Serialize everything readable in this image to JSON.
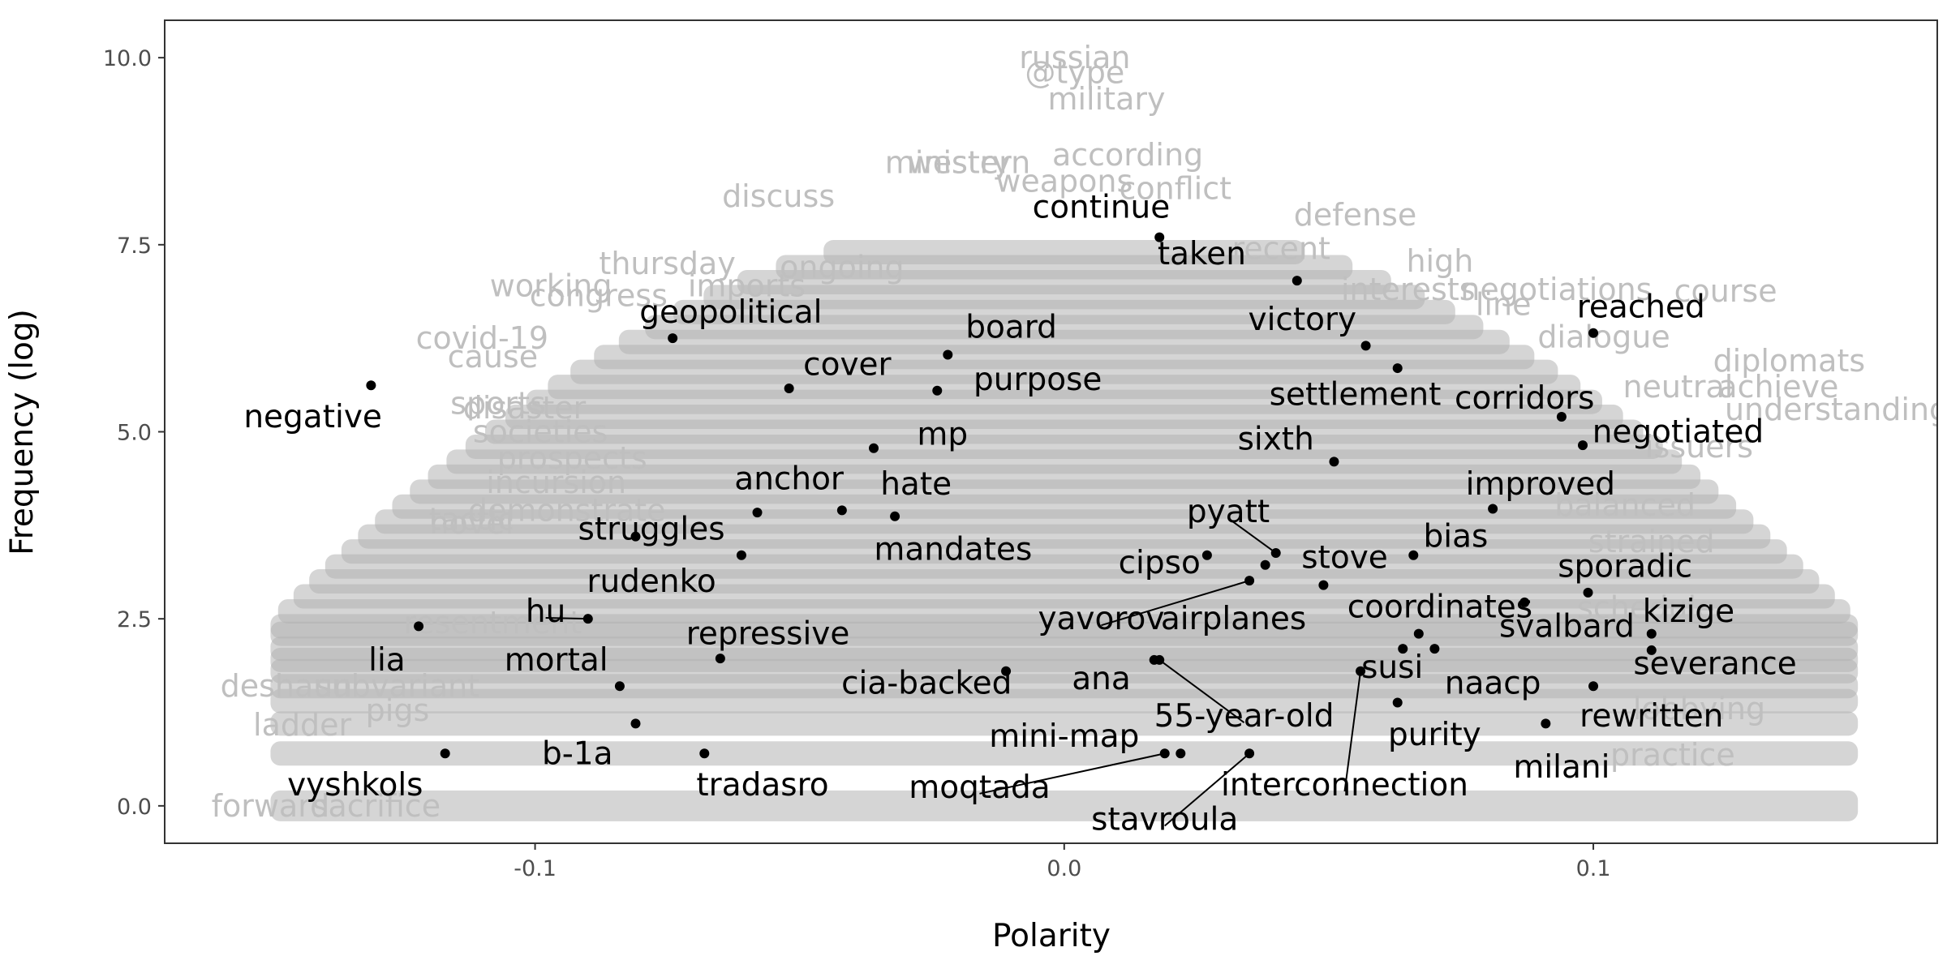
{
  "chart_data": {
    "type": "scatter",
    "xlabel": "Polarity",
    "ylabel": "Frequency (log)",
    "xlim": [
      -0.17,
      0.165
    ],
    "ylim": [
      -0.5,
      10.5
    ],
    "x_ticks": [
      -0.1,
      0.0,
      0.1
    ],
    "x_tick_labels": [
      "-0.1",
      "0.0",
      "0.1"
    ],
    "y_ticks": [
      0.0,
      2.5,
      5.0,
      7.5,
      10.0
    ],
    "y_tick_labels": [
      "0.0",
      "2.5",
      "5.0",
      "7.5",
      "10.0"
    ],
    "grid": false,
    "colors": {
      "highlight": "#000000",
      "background_words": "#bfbfbf",
      "background_cloud": "#b3b3b3"
    },
    "highlighted": [
      {
        "word": "negative",
        "x": -0.131,
        "y": 5.62,
        "lx": -0.142,
        "ly": 5.2
      },
      {
        "word": "lia",
        "x": -0.122,
        "y": 2.4,
        "lx": -0.128,
        "ly": 1.95
      },
      {
        "word": "vyshkols",
        "x": -0.117,
        "y": 0.7,
        "lx": -0.134,
        "ly": 0.28
      },
      {
        "word": "hu",
        "x": -0.09,
        "y": 2.5,
        "lx": -0.098,
        "ly": 2.6,
        "leader": true
      },
      {
        "word": "mortal",
        "x": -0.084,
        "y": 1.6,
        "lx": -0.096,
        "ly": 1.95
      },
      {
        "word": "b-1a",
        "x": -0.081,
        "y": 1.1,
        "lx": -0.092,
        "ly": 0.7
      },
      {
        "word": "rudenko",
        "x": -0.081,
        "y": 3.6,
        "lx": -0.078,
        "ly": 3.0
      },
      {
        "word": "struggles",
        "x": -0.061,
        "y": 3.35,
        "lx": -0.078,
        "ly": 3.7
      },
      {
        "word": "anchor",
        "x": -0.058,
        "y": 3.92,
        "lx": -0.052,
        "ly": 4.37
      },
      {
        "word": "repressive",
        "x": -0.065,
        "y": 1.97,
        "lx": -0.056,
        "ly": 2.3
      },
      {
        "word": "tradasro",
        "x": -0.068,
        "y": 0.7,
        "lx": -0.057,
        "ly": 0.28
      },
      {
        "word": "geopolitical",
        "x": -0.074,
        "y": 6.25,
        "lx": -0.063,
        "ly": 6.6
      },
      {
        "word": "cover",
        "x": -0.052,
        "y": 5.58,
        "lx": -0.041,
        "ly": 5.9
      },
      {
        "word": "hate",
        "x": -0.042,
        "y": 3.95,
        "lx": -0.028,
        "ly": 4.3
      },
      {
        "word": "mandates",
        "x": -0.032,
        "y": 3.87,
        "lx": -0.021,
        "ly": 3.43
      },
      {
        "word": "mp",
        "x": -0.036,
        "y": 4.78,
        "lx": -0.023,
        "ly": 4.97
      },
      {
        "word": "board",
        "x": -0.022,
        "y": 6.03,
        "lx": -0.01,
        "ly": 6.4
      },
      {
        "word": "purpose",
        "x": -0.024,
        "y": 5.55,
        "lx": -0.005,
        "ly": 5.7
      },
      {
        "word": "cia-backed",
        "x": -0.011,
        "y": 1.8,
        "lx": -0.026,
        "ly": 1.64
      },
      {
        "word": "continue",
        "x": 0.018,
        "y": 7.6,
        "lx": 0.007,
        "ly": 8.0
      },
      {
        "word": "taken",
        "x": 0.044,
        "y": 7.02,
        "lx": 0.026,
        "ly": 7.38
      },
      {
        "word": "victory",
        "x": 0.057,
        "y": 6.15,
        "lx": 0.045,
        "ly": 6.5
      },
      {
        "word": "settlement",
        "x": 0.063,
        "y": 5.85,
        "lx": 0.055,
        "ly": 5.5
      },
      {
        "word": "sixth",
        "x": 0.051,
        "y": 4.6,
        "lx": 0.04,
        "ly": 4.9
      },
      {
        "word": "pyatt",
        "x": 0.04,
        "y": 3.38,
        "lx": 0.031,
        "ly": 3.93,
        "leader": true
      },
      {
        "word": "cipso",
        "x": 0.027,
        "y": 3.35,
        "lx": 0.018,
        "ly": 3.25
      },
      {
        "word": "stove",
        "x": 0.038,
        "y": 3.22,
        "lx": 0.053,
        "ly": 3.32
      },
      {
        "word": "yavorov",
        "x": 0.035,
        "y": 3.01,
        "lx": 0.007,
        "ly": 2.5,
        "leader": true
      },
      {
        "word": "airplanes",
        "x": 0.049,
        "y": 2.95,
        "lx": 0.032,
        "ly": 2.5
      },
      {
        "word": "bias",
        "x": 0.066,
        "y": 3.35,
        "lx": 0.074,
        "ly": 3.6
      },
      {
        "word": "coordinates",
        "x": 0.067,
        "y": 2.3,
        "lx": 0.071,
        "ly": 2.66
      },
      {
        "word": "ana",
        "x": 0.017,
        "y": 1.95,
        "lx": 0.007,
        "ly": 1.7
      },
      {
        "word": "55-year-old",
        "x": 0.018,
        "y": 1.95,
        "lx": 0.034,
        "ly": 1.2,
        "leader": true
      },
      {
        "word": "mini-map",
        "x": 0.022,
        "y": 0.7,
        "lx": 0.0,
        "ly": 0.93
      },
      {
        "word": "moqtada",
        "x": 0.019,
        "y": 0.7,
        "lx": -0.016,
        "ly": 0.25,
        "leader": true
      },
      {
        "word": "stavroula",
        "x": 0.035,
        "y": 0.7,
        "lx": 0.019,
        "ly": -0.18,
        "leader": true
      },
      {
        "word": "interconnection",
        "x": 0.056,
        "y": 1.8,
        "lx": 0.053,
        "ly": 0.28,
        "leader": true
      },
      {
        "word": "susi",
        "x": 0.064,
        "y": 2.1,
        "lx": 0.062,
        "ly": 1.85
      },
      {
        "word": "purity",
        "x": 0.063,
        "y": 1.38,
        "lx": 0.07,
        "ly": 0.95
      },
      {
        "word": "naacp",
        "x": 0.07,
        "y": 2.1,
        "lx": 0.081,
        "ly": 1.64
      },
      {
        "word": "milani",
        "x": 0.091,
        "y": 1.1,
        "lx": 0.094,
        "ly": 0.52
      },
      {
        "word": "svalbard",
        "x": 0.087,
        "y": 2.72,
        "lx": 0.095,
        "ly": 2.4
      },
      {
        "word": "rewritten",
        "x": 0.1,
        "y": 1.6,
        "lx": 0.111,
        "ly": 1.2
      },
      {
        "word": "severance",
        "x": 0.111,
        "y": 2.08,
        "lx": 0.123,
        "ly": 1.9
      },
      {
        "word": "kizige",
        "x": 0.111,
        "y": 2.3,
        "lx": 0.118,
        "ly": 2.6
      },
      {
        "word": "sporadic",
        "x": 0.099,
        "y": 2.85,
        "lx": 0.106,
        "ly": 3.2
      },
      {
        "word": "improved",
        "x": 0.081,
        "y": 3.97,
        "lx": 0.09,
        "ly": 4.3
      },
      {
        "word": "corridors",
        "x": 0.094,
        "y": 5.2,
        "lx": 0.087,
        "ly": 5.45
      },
      {
        "word": "negotiated",
        "x": 0.098,
        "y": 4.82,
        "lx": 0.116,
        "ly": 5.0
      },
      {
        "word": "reached",
        "x": 0.1,
        "y": 6.32,
        "lx": 0.109,
        "ly": 6.67
      }
    ],
    "background_words": [
      {
        "word": "russian",
        "x": 0.002,
        "y": 10.0
      },
      {
        "word": "@type",
        "x": 0.002,
        "y": 9.8
      },
      {
        "word": "military",
        "x": 0.008,
        "y": 9.45
      },
      {
        "word": "western",
        "x": -0.018,
        "y": 8.6
      },
      {
        "word": "ministry",
        "x": -0.022,
        "y": 8.6
      },
      {
        "word": "weapons",
        "x": 0.0,
        "y": 8.35
      },
      {
        "word": "according",
        "x": 0.012,
        "y": 8.7
      },
      {
        "word": "conflict",
        "x": 0.021,
        "y": 8.25
      },
      {
        "word": "discuss",
        "x": -0.054,
        "y": 8.15
      },
      {
        "word": "defense",
        "x": 0.055,
        "y": 7.9
      },
      {
        "word": "thursday",
        "x": -0.075,
        "y": 7.25
      },
      {
        "word": "ongoing",
        "x": -0.042,
        "y": 7.2
      },
      {
        "word": "recent",
        "x": 0.041,
        "y": 7.45
      },
      {
        "word": "high",
        "x": 0.071,
        "y": 7.28
      },
      {
        "word": "negotiations",
        "x": 0.093,
        "y": 6.9
      },
      {
        "word": "course",
        "x": 0.125,
        "y": 6.88
      },
      {
        "word": "interests",
        "x": 0.065,
        "y": 6.9
      },
      {
        "word": "line",
        "x": 0.083,
        "y": 6.7
      },
      {
        "word": "working",
        "x": -0.097,
        "y": 6.95
      },
      {
        "word": "imports",
        "x": -0.06,
        "y": 6.95
      },
      {
        "word": "congress",
        "x": -0.088,
        "y": 6.82
      },
      {
        "word": "dialogue",
        "x": 0.102,
        "y": 6.27
      },
      {
        "word": "covid-19",
        "x": -0.11,
        "y": 6.25
      },
      {
        "word": "cause",
        "x": -0.108,
        "y": 6.0
      },
      {
        "word": "diplomats",
        "x": 0.137,
        "y": 5.95
      },
      {
        "word": "neutral",
        "x": 0.116,
        "y": 5.6
      },
      {
        "word": "achieve",
        "x": 0.135,
        "y": 5.6
      },
      {
        "word": "understanding",
        "x": 0.146,
        "y": 5.3
      },
      {
        "word": "sports",
        "x": -0.107,
        "y": 5.38
      },
      {
        "word": "disaster",
        "x": -0.102,
        "y": 5.32
      },
      {
        "word": "societies",
        "x": -0.099,
        "y": 5.0
      },
      {
        "word": "prospects",
        "x": -0.093,
        "y": 4.65
      },
      {
        "word": "incursion",
        "x": -0.096,
        "y": 4.32
      },
      {
        "word": "tactic",
        "x": -0.112,
        "y": 3.83
      },
      {
        "word": "novel",
        "x": -0.112,
        "y": 3.78
      },
      {
        "word": "demonstrate",
        "x": -0.094,
        "y": 3.95
      },
      {
        "word": "resentment",
        "x": -0.108,
        "y": 2.45
      },
      {
        "word": "deshaun",
        "x": -0.147,
        "y": 1.6
      },
      {
        "word": "subvariant",
        "x": -0.126,
        "y": 1.6
      },
      {
        "word": "pigs",
        "x": -0.126,
        "y": 1.28
      },
      {
        "word": "ladder",
        "x": -0.144,
        "y": 1.08
      },
      {
        "word": "forward",
        "x": -0.15,
        "y": 0.0
      },
      {
        "word": "sacrifice",
        "x": -0.13,
        "y": 0.0
      },
      {
        "word": "balanced",
        "x": 0.106,
        "y": 4.02
      },
      {
        "word": "strained",
        "x": 0.111,
        "y": 3.53
      },
      {
        "word": "issuers",
        "x": 0.12,
        "y": 4.8
      },
      {
        "word": "practice",
        "x": 0.115,
        "y": 0.68
      },
      {
        "word": "lobbying",
        "x": 0.12,
        "y": 1.3
      },
      {
        "word": "schedule",
        "x": 0.11,
        "y": 2.65
      }
    ],
    "cloud_rows": [
      0.0,
      0.7,
      1.1,
      1.4,
      1.6,
      1.8,
      1.95,
      2.1,
      2.3,
      2.4,
      2.6,
      2.8,
      3.0,
      3.2,
      3.4,
      3.6,
      3.8,
      4.0,
      4.2,
      4.4,
      4.6,
      4.8,
      5.0,
      5.2,
      5.4,
      5.6,
      5.8,
      6.0,
      6.2,
      6.4,
      6.6,
      6.8,
      7.0,
      7.2,
      7.4
    ]
  }
}
